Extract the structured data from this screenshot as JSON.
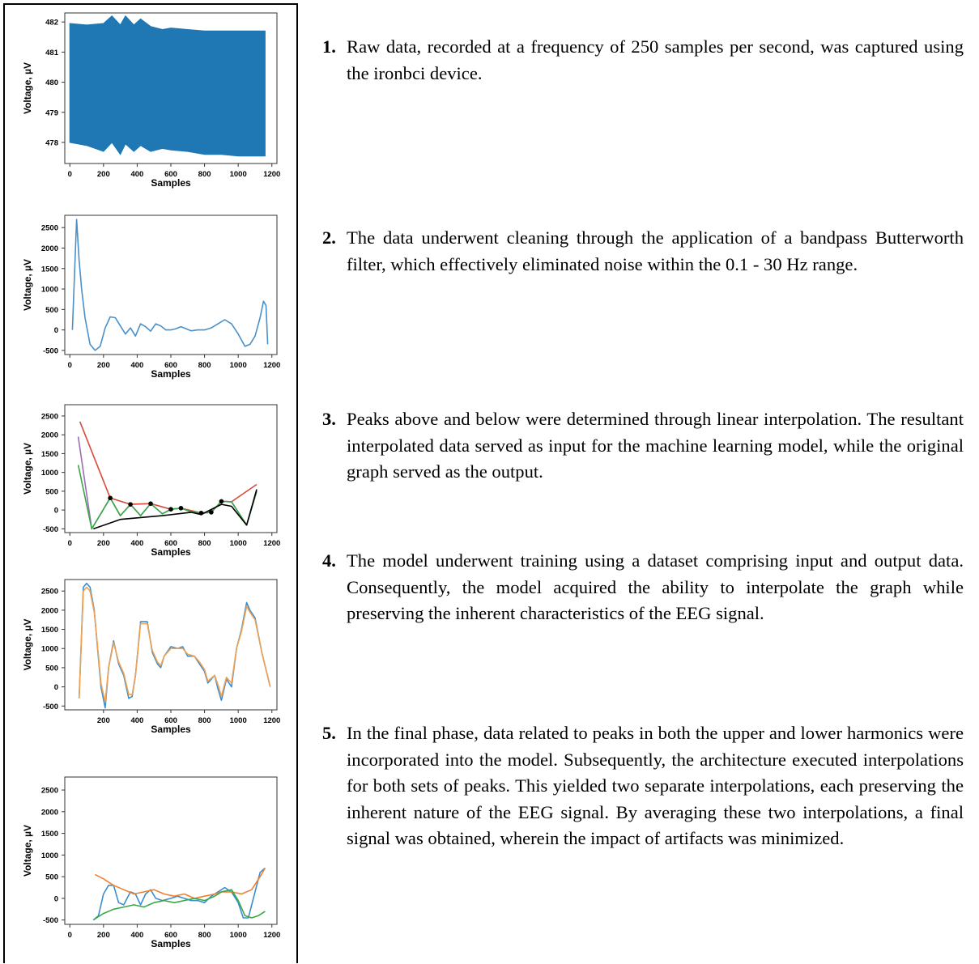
{
  "figure": {
    "steps": [
      {
        "number": "1.",
        "text": "Raw data, recorded at a frequency of 250 samples per second, was captured using the ironbci device."
      },
      {
        "number": "2.",
        "text": "The data underwent cleaning through the application of a bandpass Butterworth filter, which effectively eliminated noise within the 0.1 - 30 Hz range."
      },
      {
        "number": "3.",
        "text": "Peaks above and below were determined through linear interpolation. The resultant interpolated data served as input for the machine learning model, while the original graph served as the output."
      },
      {
        "number": "4.",
        "text": "The model underwent training using a dataset comprising input and output data. Consequently, the model acquired the ability to interpolate the graph while preserving the inherent characteristics of the EEG signal."
      },
      {
        "number": "5.",
        "text": "In the final phase, data related to peaks in both the upper and lower harmonics were incorporated into the model. Subsequently, the architecture executed interpolations for both sets of peaks. This yielded two separate interpolations, each preserving the inherent nature of the EEG signal. By averaging these two interpolations, a final signal was obtained, wherein the impact of artifacts was minimized."
      }
    ]
  },
  "chart_data": [
    {
      "type": "area",
      "xlabel": "Samples",
      "ylabel": "Voltage, µV",
      "xlim": [
        -30,
        1230
      ],
      "ylim": [
        477.3,
        482.3
      ],
      "xticks": [
        0,
        200,
        400,
        600,
        800,
        1000,
        1200
      ],
      "yticks": [
        478,
        479,
        480,
        481,
        482
      ],
      "colors": [
        "#1f77b4"
      ],
      "series": [
        {
          "x": [
            0,
            100,
            200,
            250,
            300,
            330,
            380,
            420,
            480,
            550,
            600,
            700,
            800,
            900,
            1000,
            1100,
            1160
          ],
          "upper": [
            481.95,
            481.9,
            481.95,
            482.2,
            481.9,
            482.2,
            481.9,
            482.1,
            481.85,
            481.75,
            481.8,
            481.75,
            481.7,
            481.7,
            481.7,
            481.7,
            481.7
          ],
          "lower": [
            478.0,
            477.9,
            477.7,
            478.0,
            477.6,
            477.95,
            477.7,
            477.9,
            477.7,
            477.8,
            477.75,
            477.7,
            477.6,
            477.6,
            477.55,
            477.55,
            477.55
          ]
        }
      ]
    },
    {
      "type": "line",
      "xlabel": "Samples",
      "ylabel": "Voltage, µV",
      "xlim": [
        -30,
        1230
      ],
      "ylim": [
        -600,
        2800
      ],
      "xticks": [
        0,
        200,
        400,
        600,
        800,
        1000,
        1200
      ],
      "yticks": [
        -500,
        0,
        500,
        1000,
        1500,
        2000,
        2500
      ],
      "colors": [
        "#4a90c8"
      ],
      "series": [
        {
          "x": [
            15,
            40,
            55,
            70,
            90,
            120,
            150,
            180,
            210,
            240,
            270,
            300,
            330,
            360,
            390,
            420,
            450,
            480,
            510,
            540,
            570,
            600,
            630,
            660,
            690,
            720,
            760,
            800,
            840,
            880,
            920,
            960,
            1000,
            1040,
            1070,
            1100,
            1130,
            1150,
            1165,
            1175
          ],
          "y": [
            0,
            2700,
            1700,
            1000,
            300,
            -350,
            -500,
            -400,
            50,
            320,
            300,
            100,
            -100,
            50,
            -150,
            150,
            80,
            -30,
            150,
            100,
            0,
            0,
            30,
            80,
            30,
            -20,
            0,
            0,
            50,
            150,
            250,
            150,
            -100,
            -400,
            -350,
            -150,
            300,
            700,
            600,
            -350
          ]
        }
      ]
    },
    {
      "type": "line",
      "xlabel": "Samples",
      "ylabel": "Voltage, µV",
      "xlim": [
        -30,
        1230
      ],
      "ylim": [
        -600,
        2800
      ],
      "xticks": [
        0,
        200,
        400,
        600,
        800,
        1000,
        1200
      ],
      "yticks": [
        -500,
        0,
        500,
        1000,
        1500,
        2000,
        2500
      ],
      "colors": [
        "#d84a3a",
        "#9b6fb5",
        "#3aa845",
        "#000000"
      ],
      "series": [
        {
          "x": [
            60,
            240,
            360,
            480,
            600,
            660,
            780,
            840,
            900,
            960,
            1110
          ],
          "y": [
            2350,
            320,
            150,
            170,
            20,
            50,
            -80,
            -60,
            230,
            220,
            680
          ]
        },
        {
          "x": [
            50,
            130,
            240,
            300,
            360,
            420,
            480,
            550,
            600,
            660,
            720,
            780,
            840,
            900,
            960,
            1050,
            1110
          ],
          "y": [
            1950,
            -500,
            320,
            -150,
            150,
            -150,
            170,
            -100,
            20,
            50,
            -50,
            -80,
            -60,
            230,
            220,
            -400,
            500
          ]
        },
        {
          "x": [
            50,
            130,
            240,
            300,
            360,
            420,
            480,
            550,
            600,
            660,
            720,
            780,
            840,
            900,
            960,
            1050,
            1110
          ],
          "y": [
            1200,
            -500,
            320,
            -150,
            150,
            -150,
            170,
            -100,
            20,
            50,
            -50,
            -80,
            -60,
            230,
            220,
            -400,
            500
          ]
        },
        {
          "x": [
            140,
            300,
            420,
            550,
            720,
            780,
            900,
            960,
            1050,
            1110
          ],
          "y": [
            -500,
            -250,
            -200,
            -150,
            -60,
            -120,
            150,
            100,
            -400,
            550
          ]
        },
        {
          "x": [
            240,
            360,
            480,
            600,
            660,
            780,
            840,
            900
          ],
          "y": [
            320,
            150,
            170,
            20,
            50,
            -80,
            -60,
            230
          ]
        }
      ]
    },
    {
      "type": "line",
      "xlabel": "Samples",
      "ylabel": "Voltage, µV",
      "xlim": [
        -30,
        1230
      ],
      "ylim": [
        -600,
        2800
      ],
      "xticks": [
        200,
        400,
        600,
        800,
        1000,
        1200
      ],
      "yticks": [
        -500,
        0,
        500,
        1000,
        1500,
        2000,
        2500
      ],
      "colors": [
        "#3a8ed0",
        "#f0a050"
      ],
      "series": [
        {
          "x": [
            55,
            80,
            100,
            120,
            145,
            165,
            185,
            210,
            230,
            260,
            290,
            320,
            350,
            370,
            390,
            420,
            460,
            490,
            520,
            540,
            560,
            600,
            640,
            670,
            700,
            740,
            770,
            800,
            820,
            860,
            880,
            900,
            930,
            960,
            990,
            1020,
            1050,
            1070,
            1100,
            1140,
            1190
          ],
          "y": [
            -300,
            2600,
            2700,
            2600,
            2000,
            1000,
            0,
            -550,
            500,
            1200,
            600,
            300,
            -300,
            -250,
            300,
            1700,
            1700,
            900,
            600,
            500,
            800,
            1050,
            1000,
            1050,
            800,
            800,
            600,
            400,
            100,
            300,
            -50,
            -350,
            200,
            0,
            1000,
            1500,
            2200,
            2000,
            1800,
            900,
            0
          ]
        },
        {
          "x": [
            55,
            80,
            100,
            120,
            145,
            165,
            185,
            210,
            230,
            260,
            290,
            320,
            350,
            370,
            390,
            420,
            460,
            490,
            520,
            540,
            560,
            600,
            640,
            670,
            700,
            740,
            770,
            800,
            820,
            860,
            880,
            900,
            930,
            960,
            990,
            1020,
            1050,
            1070,
            1100,
            1140,
            1190
          ],
          "y": [
            -300,
            2500,
            2600,
            2500,
            1950,
            1050,
            100,
            -400,
            500,
            1150,
            650,
            350,
            -200,
            -200,
            300,
            1650,
            1650,
            950,
            650,
            550,
            800,
            1000,
            1000,
            1000,
            850,
            800,
            650,
            450,
            150,
            300,
            50,
            -250,
            250,
            100,
            1000,
            1450,
            2100,
            1950,
            1750,
            900,
            0
          ]
        }
      ]
    },
    {
      "type": "line",
      "xlabel": "Samples",
      "ylabel": "Voltage, µV",
      "xlim": [
        -30,
        1230
      ],
      "ylim": [
        -600,
        2800
      ],
      "xticks": [
        0,
        200,
        400,
        600,
        800,
        1000,
        1200
      ],
      "yticks": [
        -500,
        0,
        500,
        1000,
        1500,
        2000,
        2500
      ],
      "colors": [
        "#3a8ed0",
        "#f08030",
        "#3aa845"
      ],
      "series": [
        {
          "x": [
            140,
            170,
            200,
            230,
            260,
            290,
            320,
            360,
            390,
            420,
            450,
            480,
            510,
            550,
            600,
            640,
            680,
            720,
            760,
            800,
            840,
            880,
            920,
            960,
            1000,
            1030,
            1060,
            1090,
            1130,
            1160
          ],
          "y": [
            -500,
            -400,
            100,
            300,
            300,
            -100,
            -150,
            150,
            100,
            -150,
            100,
            200,
            0,
            -50,
            0,
            50,
            0,
            -50,
            -50,
            -100,
            50,
            150,
            250,
            150,
            -100,
            -450,
            -450,
            0,
            600,
            700
          ]
        },
        {
          "x": [
            150,
            200,
            260,
            320,
            380,
            440,
            500,
            560,
            620,
            680,
            740,
            800,
            860,
            900,
            960,
            1020,
            1080,
            1130,
            1160
          ],
          "y": [
            550,
            450,
            300,
            200,
            100,
            150,
            200,
            100,
            50,
            100,
            0,
            50,
            100,
            150,
            150,
            100,
            200,
            500,
            700
          ]
        },
        {
          "x": [
            140,
            200,
            260,
            320,
            380,
            440,
            500,
            560,
            620,
            680,
            740,
            800,
            860,
            900,
            960,
            1000,
            1040,
            1080,
            1120,
            1160
          ],
          "y": [
            -500,
            -350,
            -250,
            -200,
            -150,
            -200,
            -100,
            -50,
            -100,
            -50,
            0,
            -50,
            50,
            150,
            200,
            -50,
            -400,
            -450,
            -400,
            -300
          ]
        }
      ]
    }
  ]
}
